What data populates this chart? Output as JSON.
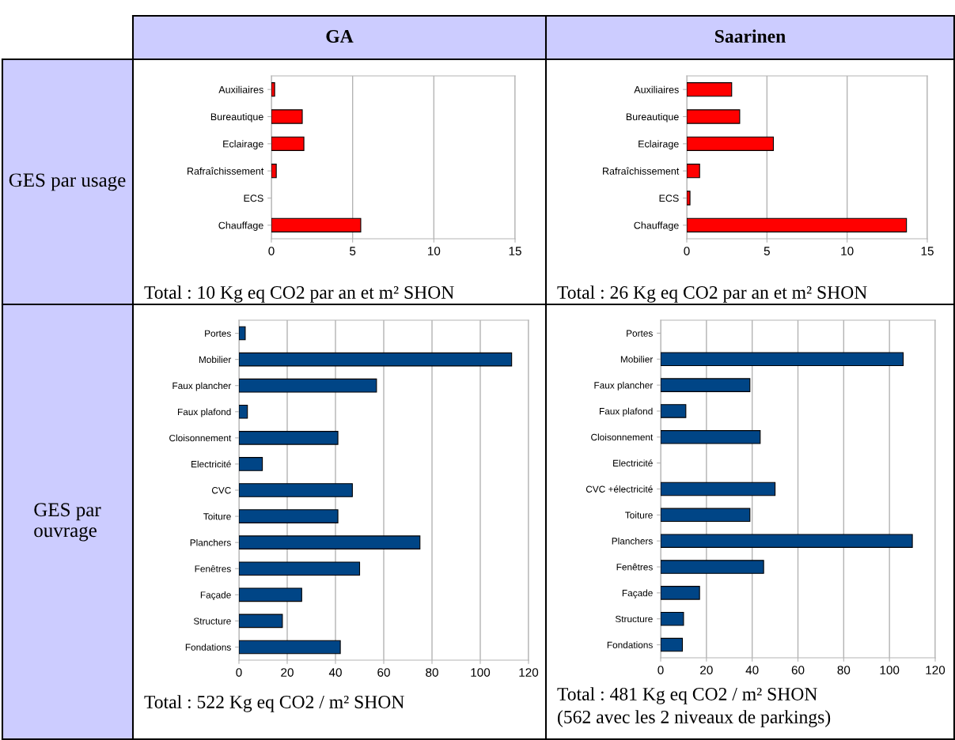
{
  "chart_data": [
    {
      "type": "bar",
      "orientation": "horizontal",
      "title": "GA",
      "ylabel": "GES par usage",
      "categories": [
        "Auxiliaires",
        "Bureautique",
        "Eclairage",
        "Rafraîchissement",
        "ECS",
        "Chauffage"
      ],
      "values": [
        0.2,
        1.9,
        2.0,
        0.3,
        null,
        5.5
      ],
      "color": "#ff0000",
      "xlim": [
        0,
        15
      ],
      "xticks": [
        0,
        5,
        10,
        15
      ],
      "grid": "x",
      "annotations": [
        "Total : 10 Kg eq CO2 par an et m² SHON"
      ]
    },
    {
      "type": "bar",
      "orientation": "horizontal",
      "title": "Saarinen",
      "categories": [
        "Auxiliaires",
        "Bureautique",
        "Eclairage",
        "Rafraîchissement",
        "ECS",
        "Chauffage"
      ],
      "values": [
        2.8,
        3.3,
        5.4,
        0.8,
        0.2,
        13.7
      ],
      "color": "#ff0000",
      "xlim": [
        0,
        15
      ],
      "xticks": [
        0,
        5,
        10,
        15
      ],
      "grid": "x",
      "annotations": [
        "Total : 26 Kg eq CO2 par an et m² SHON"
      ]
    },
    {
      "type": "bar",
      "orientation": "horizontal",
      "ylabel": "GES par ouvrage",
      "categories": [
        "Portes",
        "Mobilier",
        "Faux plancher",
        "Faux plafond",
        "Cloisonnement",
        "Electricité",
        "CVC",
        "Toiture",
        "Planchers",
        "Fenêtres",
        "Façade",
        "Structure",
        "Fondations"
      ],
      "values": [
        2.6,
        113,
        57,
        3.5,
        41,
        9.7,
        47,
        41,
        75,
        50,
        26,
        18,
        42
      ],
      "color": "#004586",
      "xlim": [
        0,
        120
      ],
      "xticks": [
        0,
        20,
        40,
        60,
        80,
        100,
        120
      ],
      "grid": "x",
      "annotations": [
        "Total : 522 Kg eq CO2 / m² SHON"
      ]
    },
    {
      "type": "bar",
      "orientation": "horizontal",
      "categories": [
        "Portes",
        "Mobilier",
        "Faux plancher",
        "Faux plafond",
        "Cloisonnement",
        "Electricité",
        "CVC +électricité",
        "Toiture",
        "Planchers",
        "Fenêtres",
        "Façade",
        "Structure",
        "Fondations"
      ],
      "values": [
        null,
        106,
        39,
        11,
        43.5,
        null,
        50,
        39,
        110,
        45,
        17,
        10,
        9.5
      ],
      "color": "#004586",
      "xlim": [
        0,
        120
      ],
      "xticks": [
        0,
        20,
        40,
        60,
        80,
        100,
        120
      ],
      "grid": "x",
      "annotations": [
        "Total : 481 Kg eq CO2 / m² SHON",
        "(562 avec les 2 niveaux de parkings)"
      ]
    }
  ]
}
